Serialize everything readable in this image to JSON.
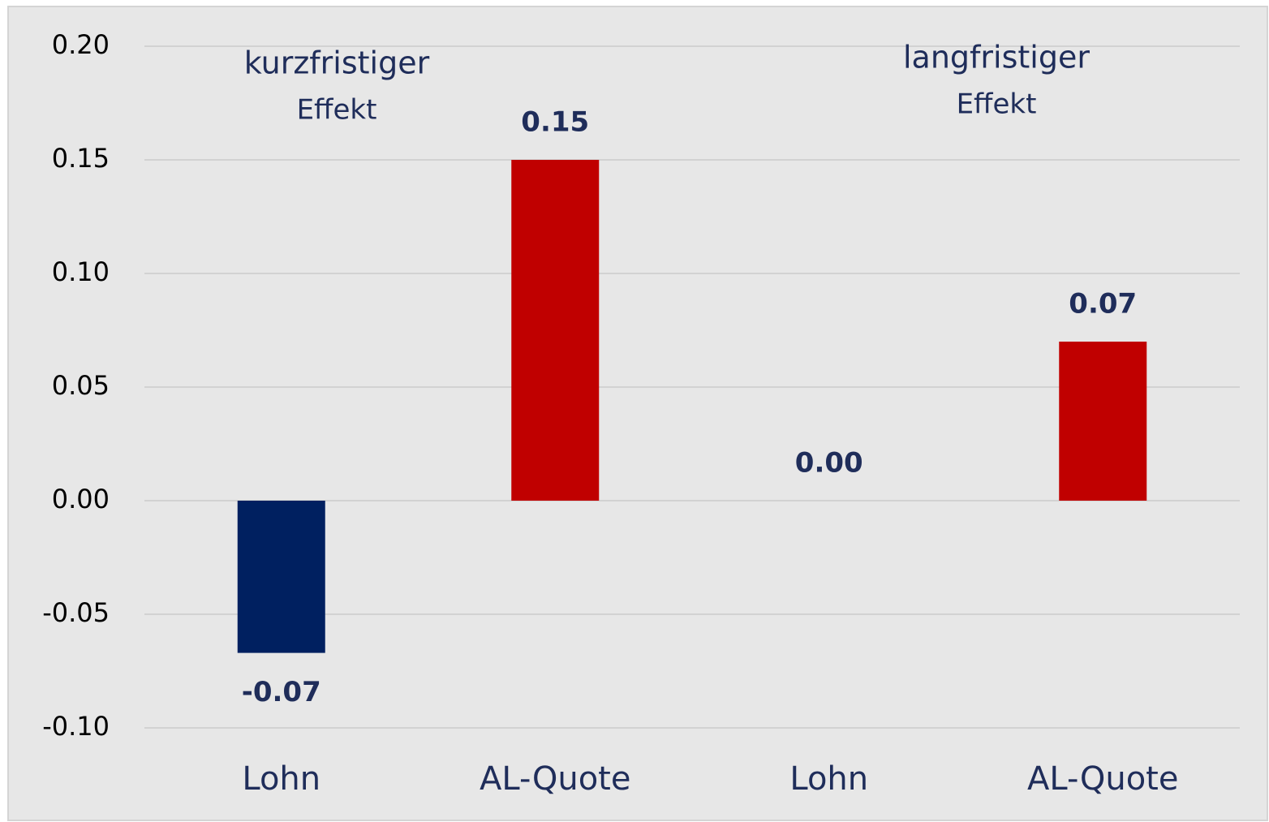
{
  "chart_data": {
    "type": "bar",
    "categories": [
      "Lohn",
      "AL-Quote",
      "Lohn",
      "AL-Quote"
    ],
    "values": [
      -0.067,
      0.15,
      0,
      0.07
    ],
    "value_labels": [
      "-0.07",
      "0.15",
      "0.00",
      "0.07"
    ],
    "colors": [
      "#002060",
      "#c00000",
      "#002060",
      "#c00000"
    ],
    "ylim": [
      -0.1,
      0.2
    ],
    "yticks": [
      {
        "value": -0.1,
        "label": "-0.10"
      },
      {
        "value": -0.05,
        "label": "-0.05"
      },
      {
        "value": 0,
        "label": "0.00"
      },
      {
        "value": 0.05,
        "label": "0.05"
      },
      {
        "value": 0.1,
        "label": "0.10"
      },
      {
        "value": 0.15,
        "label": "0.15"
      },
      {
        "value": 0.2,
        "label": "0.20"
      }
    ],
    "grid": true,
    "annotations": [
      {
        "lines": [
          "kurzfristiger",
          "Effekt"
        ]
      },
      {
        "lines": [
          "langfristiger",
          "Effekt"
        ]
      }
    ]
  }
}
